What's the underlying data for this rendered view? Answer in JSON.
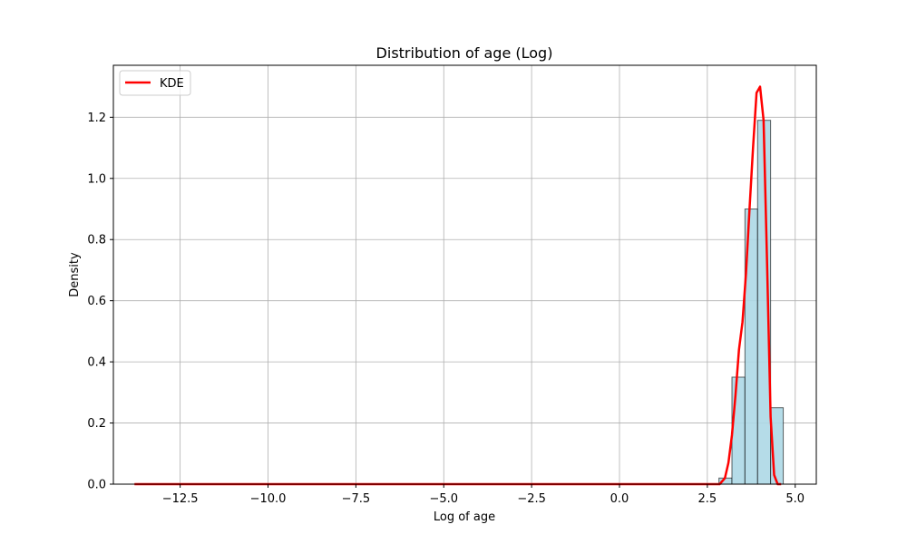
{
  "chart_data": {
    "type": "histogram",
    "title": "Distribution of age (Log)",
    "xlabel": "Log of age",
    "ylabel": "Density",
    "xlim": [
      -14.4,
      5.6
    ],
    "ylim": [
      0,
      1.37
    ],
    "xticks": [
      -12.5,
      -10.0,
      -7.5,
      -5.0,
      -2.5,
      0.0,
      2.5,
      5.0
    ],
    "xtick_labels": [
      "−12.5",
      "−10.0",
      "−7.5",
      "−5.0",
      "−2.5",
      "0.0",
      "2.5",
      "5.0"
    ],
    "yticks": [
      0.0,
      0.2,
      0.4,
      0.6,
      0.8,
      1.0,
      1.2
    ],
    "ytick_labels": [
      "0.0",
      "0.2",
      "0.4",
      "0.6",
      "0.8",
      "1.0",
      "1.2"
    ],
    "grid": true,
    "histogram": {
      "color": "#add8e6",
      "edgecolor": "#000000",
      "bins": [
        {
          "x0": 2.83,
          "x1": 3.2,
          "density": 0.02
        },
        {
          "x0": 3.2,
          "x1": 3.57,
          "density": 0.35
        },
        {
          "x0": 3.57,
          "x1": 3.93,
          "density": 0.9
        },
        {
          "x0": 3.93,
          "x1": 4.3,
          "density": 1.19
        },
        {
          "x0": 4.3,
          "x1": 4.66,
          "density": 0.25
        }
      ]
    },
    "series": [
      {
        "name": "KDE",
        "color": "#ff0000",
        "x": [
          -13.8,
          2.85,
          3.0,
          3.1,
          3.2,
          3.3,
          3.4,
          3.5,
          3.6,
          3.7,
          3.8,
          3.9,
          4.0,
          4.1,
          4.2,
          4.3,
          4.4,
          4.5,
          4.6
        ],
        "y": [
          0.0,
          0.0,
          0.02,
          0.07,
          0.16,
          0.29,
          0.44,
          0.53,
          0.69,
          0.9,
          1.1,
          1.28,
          1.3,
          1.19,
          0.72,
          0.22,
          0.03,
          0.0,
          0.0
        ]
      }
    ],
    "legend": {
      "position": "top-left",
      "entries": [
        "KDE"
      ]
    }
  }
}
